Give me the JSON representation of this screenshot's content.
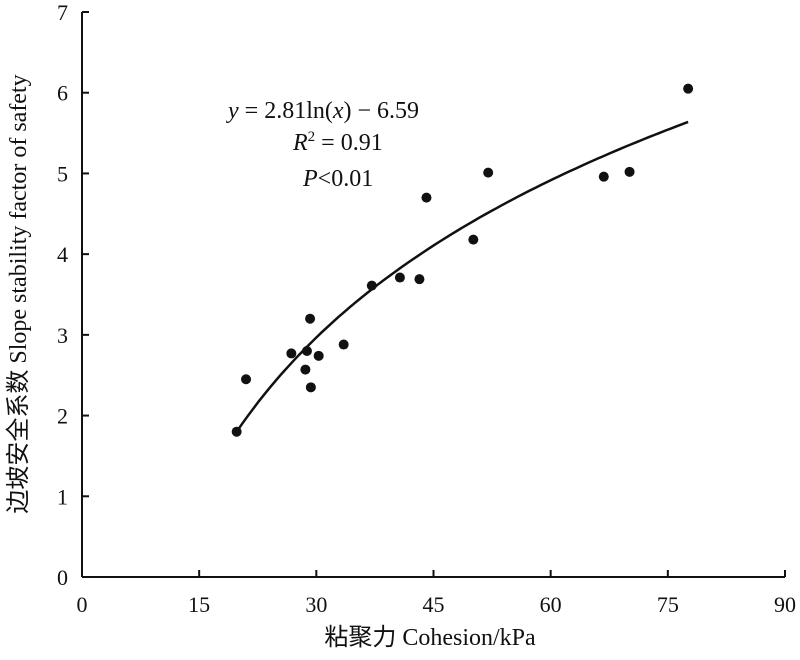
{
  "chart_data": {
    "type": "scatter",
    "xlabel": "粘聚力 Cohesion/kPa",
    "ylabel": "边坡安全系数 Slope stability factor of safety",
    "xlim": [
      0,
      90
    ],
    "ylim": [
      0,
      7
    ],
    "xticks": [
      0,
      15,
      30,
      45,
      60,
      75,
      90
    ],
    "yticks": [
      0,
      1,
      2,
      3,
      4,
      5,
      6,
      7
    ],
    "grid": false,
    "points": [
      {
        "x": 19.8,
        "y": 1.8
      },
      {
        "x": 21.0,
        "y": 2.45
      },
      {
        "x": 26.8,
        "y": 2.77
      },
      {
        "x": 28.6,
        "y": 2.57
      },
      {
        "x": 28.8,
        "y": 2.8
      },
      {
        "x": 29.2,
        "y": 3.2
      },
      {
        "x": 29.3,
        "y": 2.35
      },
      {
        "x": 30.3,
        "y": 2.74
      },
      {
        "x": 33.5,
        "y": 2.88
      },
      {
        "x": 37.1,
        "y": 3.61
      },
      {
        "x": 40.7,
        "y": 3.71
      },
      {
        "x": 43.2,
        "y": 3.69
      },
      {
        "x": 44.1,
        "y": 4.7
      },
      {
        "x": 50.1,
        "y": 4.18
      },
      {
        "x": 52.0,
        "y": 5.01
      },
      {
        "x": 66.8,
        "y": 4.96
      },
      {
        "x": 70.1,
        "y": 5.02
      },
      {
        "x": 77.6,
        "y": 6.05
      }
    ],
    "fit": {
      "a": 2.81,
      "b": -6.59,
      "x_start": 19.8,
      "x_end": 77.6
    },
    "annotations": {
      "equation": {
        "y": "y",
        "eq1": " = 2.81ln(",
        "x": "x",
        "eq2": ") − 6.59"
      },
      "r2": {
        "r": "R",
        "sup": "2",
        "rest": " = 0.91"
      },
      "p": {
        "p": "P",
        "rest": "<0.01"
      }
    }
  }
}
